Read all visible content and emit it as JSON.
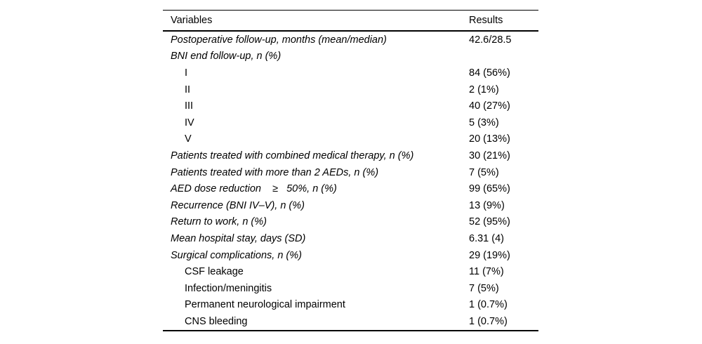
{
  "colors": {
    "background": "#ffffff",
    "text": "#000000",
    "rule": "#000000"
  },
  "table": {
    "columns": [
      {
        "label": "Variables"
      },
      {
        "label": "Results"
      }
    ],
    "rows": [
      {
        "variable": "Postoperative follow-up, months (mean/median)",
        "result": "42.6/28.5",
        "italic": true,
        "indent": false
      },
      {
        "variable": "BNI end follow-up, n (%)",
        "result": "",
        "italic": true,
        "indent": false
      },
      {
        "variable": "I",
        "result": "84 (56%)",
        "italic": false,
        "indent": true
      },
      {
        "variable": "II",
        "result": "2 (1%)",
        "italic": false,
        "indent": true
      },
      {
        "variable": "III",
        "result": "40 (27%)",
        "italic": false,
        "indent": true
      },
      {
        "variable": "IV",
        "result": "5 (3%)",
        "italic": false,
        "indent": true
      },
      {
        "variable": "V",
        "result": "20 (13%)",
        "italic": false,
        "indent": true
      },
      {
        "variable": "Patients treated with combined medical therapy, n (%)",
        "result": "30 (21%)",
        "italic": true,
        "indent": false
      },
      {
        "variable": "Patients treated with more than 2 AEDs, n (%)",
        "result": "7 (5%)",
        "italic": true,
        "indent": false
      },
      {
        "variable": "AED dose reduction    ≥   50%, n (%)",
        "result": "99 (65%)",
        "italic": true,
        "indent": false
      },
      {
        "variable": "Recurrence (BNI IV–V), n (%)",
        "result": "13 (9%)",
        "italic": true,
        "indent": false
      },
      {
        "variable": "Return to work, n (%)",
        "result": "52 (95%)",
        "italic": true,
        "indent": false
      },
      {
        "variable": "Mean hospital stay, days (SD)",
        "result": "6.31 (4)",
        "italic": true,
        "indent": false
      },
      {
        "variable": "Surgical complications, n (%)",
        "result": "29 (19%)",
        "italic": true,
        "indent": false
      },
      {
        "variable": "CSF leakage",
        "result": "11 (7%)",
        "italic": false,
        "indent": true
      },
      {
        "variable": "Infection/meningitis",
        "result": "7 (5%)",
        "italic": false,
        "indent": true
      },
      {
        "variable": "Permanent neurological impairment",
        "result": "1 (0.7%)",
        "italic": false,
        "indent": true
      },
      {
        "variable": "CNS bleeding",
        "result": "1 (0.7%)",
        "italic": false,
        "indent": true
      }
    ]
  }
}
